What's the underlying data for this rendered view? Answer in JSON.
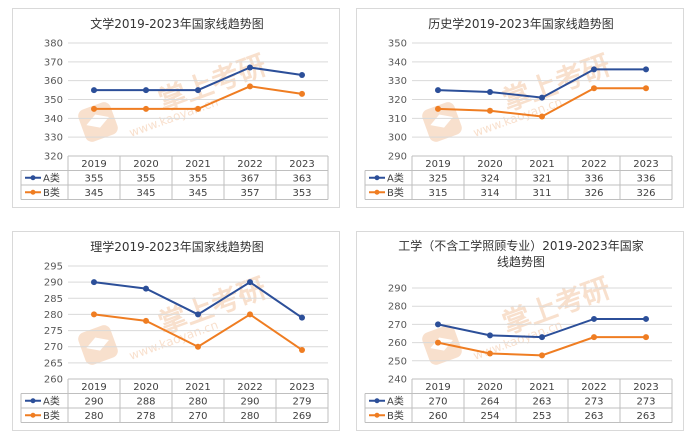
{
  "colors": {
    "A": "#2c4f99",
    "B": "#ef7d22",
    "grid": "#d9d9d9",
    "table_border": "#bfbfbf",
    "watermark": "#f4c7a6"
  },
  "watermark": {
    "cn": "掌上考研",
    "url": "www.kaoyan.cn",
    "icon": "graduation-cap-logo-icon"
  },
  "chart_data": [
    {
      "type": "line",
      "title": "文学2019-2023年国家线趋势图",
      "title_lines": [
        "文学2019-2023年国家线趋势图"
      ],
      "categories": [
        "2019",
        "2020",
        "2021",
        "2022",
        "2023"
      ],
      "ylim": [
        320,
        380
      ],
      "yticks": [
        "320",
        "330",
        "340",
        "350",
        "360",
        "370",
        "380"
      ],
      "grid": true,
      "legend": "table-left",
      "series": [
        {
          "name": "A类",
          "values": [
            355,
            355,
            355,
            367,
            363
          ]
        },
        {
          "name": "B类",
          "values": [
            345,
            345,
            345,
            357,
            353
          ]
        }
      ]
    },
    {
      "type": "line",
      "title": "历史学2019-2023年国家线趋势图",
      "title_lines": [
        "历史学2019-2023年国家线趋势图"
      ],
      "categories": [
        "2019",
        "2020",
        "2021",
        "2022",
        "2023"
      ],
      "ylim": [
        290,
        350
      ],
      "yticks": [
        "290",
        "300",
        "310",
        "320",
        "330",
        "340",
        "350"
      ],
      "grid": true,
      "legend": "table-left",
      "series": [
        {
          "name": "A类",
          "values": [
            325,
            324,
            321,
            336,
            336
          ]
        },
        {
          "name": "B类",
          "values": [
            315,
            314,
            311,
            326,
            326
          ]
        }
      ]
    },
    {
      "type": "line",
      "title": "理学2019-2023年国家线趋势图",
      "title_lines": [
        "理学2019-2023年国家线趋势图"
      ],
      "categories": [
        "2019",
        "2020",
        "2021",
        "2022",
        "2023"
      ],
      "ylim": [
        260,
        295
      ],
      "yticks": [
        "260",
        "265",
        "270",
        "275",
        "280",
        "285",
        "290",
        "295"
      ],
      "grid": true,
      "legend": "table-left",
      "series": [
        {
          "name": "A类",
          "values": [
            290,
            288,
            280,
            290,
            279
          ]
        },
        {
          "name": "B类",
          "values": [
            280,
            278,
            270,
            280,
            269
          ]
        }
      ]
    },
    {
      "type": "line",
      "title": "工学（不含工学照顾专业）2019-2023年国家线趋势图",
      "title_lines": [
        "工学（不含工学照顾专业）2019-2023年国家",
        "线趋势图"
      ],
      "categories": [
        "2019",
        "2020",
        "2021",
        "2022",
        "2023"
      ],
      "ylim": [
        240,
        290
      ],
      "yticks": [
        "240",
        "250",
        "260",
        "270",
        "280",
        "290"
      ],
      "grid": true,
      "legend": "table-left",
      "series": [
        {
          "name": "A类",
          "values": [
            270,
            264,
            263,
            273,
            273
          ]
        },
        {
          "name": "B类",
          "values": [
            260,
            254,
            253,
            263,
            263
          ]
        }
      ]
    }
  ]
}
